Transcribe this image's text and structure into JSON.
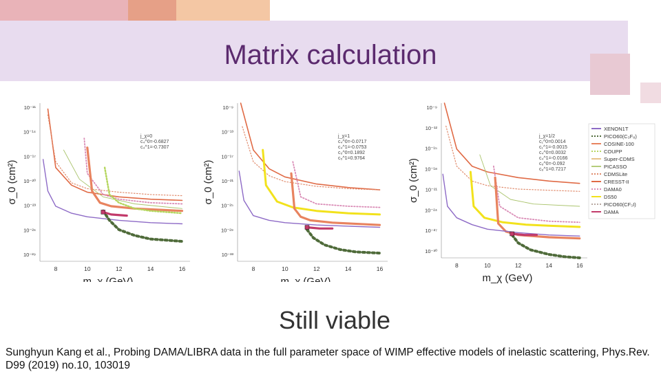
{
  "slide": {
    "title": "Matrix calculation",
    "subtitle": "Still viable",
    "citation": "Sunghyun Kang et al., Probing DAMA/LIBRA data in the full parameter space of WIMP effective models of inelastic scattering, Phys.Rev. D99 (2019) no.10, 103019"
  },
  "colors": {
    "title_band": "#e8dcef",
    "title_text": "#5b2a6e",
    "deco_orange": "#e6a087",
    "deco_peach": "#f4c7a4",
    "deco_pink": "#e9b3b8"
  },
  "chart_data": [
    {
      "type": "line",
      "xlabel": "m_χ (GeV)",
      "ylabel": "σ_0 (cm²)",
      "x_ticks": [
        8,
        10,
        12,
        14,
        16
      ],
      "y_tick_labels": [
        "10⁻¹¹",
        "10⁻¹⁴",
        "10⁻¹⁷",
        "10⁻²⁰",
        "10⁻²³",
        "10⁻²⁶",
        "10⁻²⁹"
      ],
      "annotation": [
        "j_χ=0",
        "c₄^0=-0.6827",
        "c₄^1=-0.7307"
      ],
      "series": [
        {
          "color": "#e06a45",
          "style": "solid",
          "width": 1.6,
          "x": [
            7.5,
            8,
            9,
            10,
            12,
            14,
            16
          ],
          "y": [
            0.05,
            0.55,
            0.7,
            0.76,
            0.8,
            0.82,
            0.83
          ]
        },
        {
          "color": "#e08a6b",
          "style": "dotted",
          "width": 1.2,
          "x": [
            7.5,
            8,
            9,
            10,
            12,
            14,
            16
          ],
          "y": [
            0.1,
            0.5,
            0.68,
            0.73,
            0.76,
            0.78,
            0.79
          ]
        },
        {
          "color": "#d98ab5",
          "style": "dotted",
          "width": 1.8,
          "x": [
            9.8,
            10,
            11,
            12,
            14,
            16
          ],
          "y": [
            0.3,
            0.6,
            0.78,
            0.82,
            0.85,
            0.86
          ]
        },
        {
          "color": "#a9c36b",
          "style": "solid",
          "width": 0.9,
          "x": [
            8.5,
            9.5,
            11,
            13,
            16
          ],
          "y": [
            0.4,
            0.65,
            0.8,
            0.86,
            0.9
          ]
        },
        {
          "color": "#8d6ac6",
          "style": "solid",
          "width": 1.4,
          "x": [
            7.2,
            7.5,
            8,
            9,
            10,
            12,
            14,
            16
          ],
          "y": [
            0.48,
            0.75,
            0.88,
            0.94,
            0.97,
            1.0,
            1.02,
            1.03
          ]
        },
        {
          "color": "#e8835f",
          "style": "solid",
          "width": 3.2,
          "x": [
            10.0,
            10.3,
            10.8,
            11.5,
            13,
            16
          ],
          "y": [
            0.38,
            0.75,
            0.85,
            0.88,
            0.9,
            0.92
          ]
        },
        {
          "color": "#b5d65f",
          "style": "dotted",
          "width": 2.5,
          "x": [
            11.1,
            11.4,
            12,
            13,
            14,
            16
          ],
          "y": [
            0.55,
            0.78,
            0.85,
            0.9,
            0.92,
            0.94
          ]
        },
        {
          "color": "#4f6b3a",
          "style": "dotted",
          "width": 4,
          "x": [
            11.0,
            11.4,
            12,
            13,
            14,
            16
          ],
          "y": [
            0.92,
            1.0,
            1.08,
            1.13,
            1.16,
            1.18
          ]
        },
        {
          "color": "#c23a6a",
          "style": "solid",
          "width": 3.2,
          "x": [
            11.0,
            11.5,
            12.5
          ],
          "y": [
            0.93,
            0.95,
            0.96
          ]
        }
      ],
      "markers": [
        {
          "color": "#c23a6a",
          "x": 11.0,
          "y": 0.93
        }
      ]
    },
    {
      "type": "line",
      "xlabel": "m_χ (GeV)",
      "ylabel": "σ_0 (cm²)",
      "x_ticks": [
        8,
        10,
        12,
        14,
        16
      ],
      "y_tick_labels": [
        "10⁻⁹",
        "10⁻¹³",
        "10⁻¹⁷",
        "10⁻²¹",
        "10⁻²⁵",
        "10⁻²⁹",
        "10⁻³³"
      ],
      "annotation": [
        "j_χ=1",
        "c₄^0=-0.0717",
        "c₄^1=-0.0753",
        "c₅^0=0.1892",
        "c₅^1=0.9764"
      ],
      "series": [
        {
          "color": "#e06a45",
          "style": "solid",
          "width": 1.6,
          "x": [
            7.2,
            8,
            9,
            10,
            12,
            14,
            16
          ],
          "y": [
            0.0,
            0.4,
            0.56,
            0.63,
            0.69,
            0.72,
            0.74
          ]
        },
        {
          "color": "#e08a6b",
          "style": "dotted",
          "width": 1.2,
          "x": [
            7.3,
            8,
            9,
            10,
            12,
            14,
            16
          ],
          "y": [
            0.2,
            0.5,
            0.62,
            0.67,
            0.71,
            0.73,
            0.74
          ]
        },
        {
          "color": "#f2e21c",
          "style": "solid",
          "width": 3,
          "x": [
            8.6,
            8.8,
            9.5,
            10.5,
            12,
            14,
            16
          ],
          "y": [
            0.4,
            0.7,
            0.84,
            0.89,
            0.92,
            0.94,
            0.95
          ]
        },
        {
          "color": "#d98ab5",
          "style": "dotted",
          "width": 1.8,
          "x": [
            10.5,
            11,
            12,
            14,
            16
          ],
          "y": [
            0.5,
            0.8,
            0.86,
            0.88,
            0.89
          ]
        },
        {
          "color": "#e8835f",
          "style": "solid",
          "width": 3.2,
          "x": [
            10.4,
            10.6,
            11.0,
            11.6,
            13,
            16
          ],
          "y": [
            0.6,
            0.9,
            0.97,
            1.0,
            1.02,
            1.04
          ]
        },
        {
          "color": "#8d6ac6",
          "style": "solid",
          "width": 1.4,
          "x": [
            7.1,
            7.4,
            8,
            9,
            10,
            12,
            14,
            16
          ],
          "y": [
            0.58,
            0.83,
            0.96,
            1.0,
            1.02,
            1.04,
            1.05,
            1.06
          ]
        },
        {
          "color": "#4f6b3a",
          "style": "dotted",
          "width": 4,
          "x": [
            11.4,
            11.8,
            12.5,
            13.5,
            14.5,
            16
          ],
          "y": [
            1.08,
            1.15,
            1.21,
            1.25,
            1.27,
            1.28
          ]
        },
        {
          "color": "#c23a6a",
          "style": "solid",
          "width": 3.2,
          "x": [
            11.4,
            12.2,
            13
          ],
          "y": [
            1.06,
            1.07,
            1.07
          ]
        }
      ],
      "markers": [
        {
          "color": "#c23a6a",
          "x": 11.4,
          "y": 1.06
        }
      ]
    },
    {
      "type": "line",
      "xlabel": "m_χ (GeV)",
      "ylabel": "σ_0 (cm²)",
      "x_ticks": [
        8,
        10,
        12,
        14,
        16
      ],
      "y_tick_labels": [
        "10⁻⁹",
        "10⁻¹²",
        "10⁻¹⁵",
        "10⁻¹⁸",
        "10⁻²¹",
        "10⁻²⁴",
        "10⁻²⁷",
        "10⁻³⁰"
      ],
      "annotation": [
        "j_χ=1/2",
        "c₁^0=0.0014",
        "c₁^1=-0.0015",
        "c₄^0=0.0032",
        "c₄^1=-0.0166",
        "c₆^0=-0.092",
        "c₆^1=0.7217"
      ],
      "legend": {
        "placement": "right",
        "entries": [
          {
            "label": "XENON1T",
            "color": "#8d6ac6",
            "style": "solid"
          },
          {
            "label": "PICO60(C₃F₈)",
            "color": "#4f6b3a",
            "style": "dotted"
          },
          {
            "label": "COSINE-100",
            "color": "#e8835f",
            "style": "solid"
          },
          {
            "label": "COUPP",
            "color": "#b5d65f",
            "style": "dotted"
          },
          {
            "label": "Super-CDMS",
            "color": "#e6c38a",
            "style": "solid"
          },
          {
            "label": "PICASSO",
            "color": "#b4cc7a",
            "style": "solid"
          },
          {
            "label": "CDMSLite",
            "color": "#e08a6b",
            "style": "dotted"
          },
          {
            "label": "CRESST-II",
            "color": "#e06a45",
            "style": "solid"
          },
          {
            "label": "DAMA0",
            "color": "#d98ab5",
            "style": "dotted"
          },
          {
            "label": "DS50",
            "color": "#f2e21c",
            "style": "solid"
          },
          {
            "label": "PICO60(CF₃I)",
            "color": "#b7a7a0",
            "style": "dotted"
          },
          {
            "label": "DAMA",
            "color": "#c23a6a",
            "style": "solid"
          }
        ]
      },
      "series": [
        {
          "color": "#e06a45",
          "style": "solid",
          "width": 1.6,
          "x": [
            7.2,
            8,
            9,
            10,
            12,
            14,
            16
          ],
          "y": [
            0.0,
            0.4,
            0.55,
            0.6,
            0.65,
            0.68,
            0.7
          ]
        },
        {
          "color": "#e08a6b",
          "style": "dotted",
          "width": 1.2,
          "x": [
            7.3,
            8,
            9,
            10,
            12,
            14,
            16
          ],
          "y": [
            0.2,
            0.55,
            0.68,
            0.72,
            0.75,
            0.76,
            0.77
          ]
        },
        {
          "color": "#a9c36b",
          "style": "solid",
          "width": 0.9,
          "x": [
            9.5,
            10.2,
            11.5,
            13,
            16
          ],
          "y": [
            0.45,
            0.72,
            0.84,
            0.88,
            0.9
          ]
        },
        {
          "color": "#f2e21c",
          "style": "solid",
          "width": 3,
          "x": [
            8.9,
            9.1,
            9.8,
            11,
            12.5,
            14,
            16
          ],
          "y": [
            0.6,
            0.9,
            1.0,
            1.04,
            1.06,
            1.07,
            1.08
          ]
        },
        {
          "color": "#d98ab5",
          "style": "dotted",
          "width": 1.8,
          "x": [
            10.4,
            10.8,
            12,
            14,
            16
          ],
          "y": [
            0.55,
            0.9,
            1.0,
            1.03,
            1.04
          ]
        },
        {
          "color": "#e8835f",
          "style": "solid",
          "width": 3.2,
          "x": [
            10.5,
            10.7,
            11.2,
            12,
            14,
            16
          ],
          "y": [
            0.65,
            1.05,
            1.12,
            1.15,
            1.17,
            1.18
          ]
        },
        {
          "color": "#8d6ac6",
          "style": "solid",
          "width": 1.4,
          "x": [
            7.1,
            7.4,
            8,
            9,
            10,
            12,
            14,
            16
          ],
          "y": [
            0.62,
            0.9,
            1.0,
            1.06,
            1.1,
            1.13,
            1.15,
            1.16
          ]
        },
        {
          "color": "#4f6b3a",
          "style": "dotted",
          "width": 4,
          "x": [
            11.6,
            12,
            12.8,
            14,
            15,
            16
          ],
          "y": [
            1.15,
            1.22,
            1.28,
            1.32,
            1.34,
            1.35
          ]
        },
        {
          "color": "#c23a6a",
          "style": "solid",
          "width": 3.2,
          "x": [
            11.6,
            12.4,
            13.2
          ],
          "y": [
            1.14,
            1.15,
            1.15
          ]
        }
      ],
      "markers": [
        {
          "color": "#c23a6a",
          "x": 11.6,
          "y": 1.14
        }
      ]
    }
  ]
}
